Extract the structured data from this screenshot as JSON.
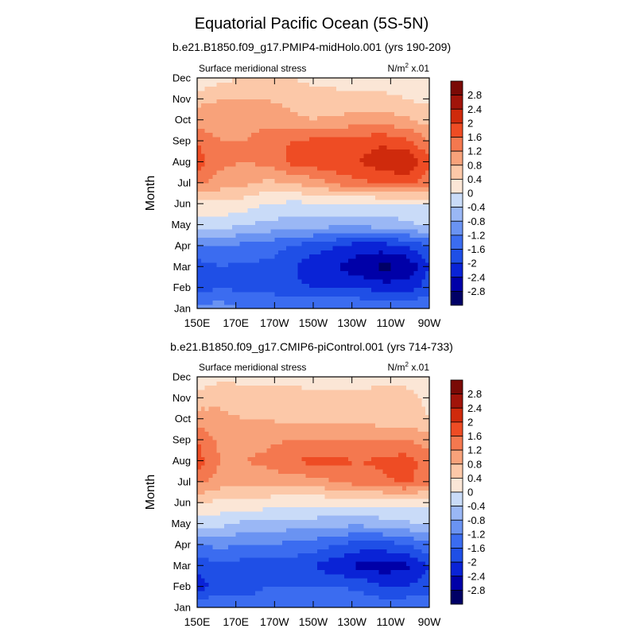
{
  "figure": {
    "title": "Equatorial Pacific Ocean (5S-5N)"
  },
  "chart_data": [
    {
      "type": "heatmap",
      "subtitle": "b.e21.B1850.f09_g17.PMIP4-midHolo.001 (yrs 190-209)",
      "left_label": "Surface meridional stress",
      "right_label_base": "N/m",
      "right_label_exp": "2",
      "right_label_scale": "x.01",
      "ylabel": "Month",
      "xlabel": "",
      "x_tick_labels": [
        "150E",
        "170E",
        "170W",
        "150W",
        "130W",
        "110W",
        "90W"
      ],
      "x_tick_values": [
        150,
        170,
        190,
        210,
        230,
        250,
        270
      ],
      "xlim": [
        150,
        270
      ],
      "y_tick_labels": [
        "Jan",
        "Feb",
        "Mar",
        "Apr",
        "May",
        "Jun",
        "Jul",
        "Aug",
        "Sep",
        "Oct",
        "Nov",
        "Dec"
      ],
      "ylim": [
        1,
        12
      ],
      "grid_lon": [
        150,
        162,
        174,
        186,
        198,
        210,
        222,
        234,
        246,
        258,
        270
      ],
      "values": [
        [
          -1.0,
          -1.0,
          -1.2,
          -1.2,
          -1.2,
          -1.2,
          -1.2,
          -1.2,
          -1.2,
          -1.2,
          -1.2
        ],
        [
          -1.8,
          -1.6,
          -1.7,
          -1.7,
          -1.9,
          -2.0,
          -2.0,
          -2.0,
          -2.2,
          -2.2,
          -1.8
        ],
        [
          -1.8,
          -1.6,
          -1.7,
          -1.7,
          -1.9,
          -2.3,
          -2.4,
          -2.7,
          -2.9,
          -2.8,
          -2.0
        ],
        [
          -1.2,
          -1.2,
          -1.3,
          -1.4,
          -1.6,
          -1.8,
          -2.0,
          -2.2,
          -2.2,
          -2.0,
          -1.6
        ],
        [
          -0.3,
          -0.2,
          -0.4,
          -0.5,
          -0.6,
          -0.6,
          -0.7,
          -0.7,
          -0.6,
          -0.5,
          -0.3
        ],
        [
          0.3,
          0.3,
          0.2,
          0.0,
          -0.1,
          -0.1,
          -0.1,
          -0.1,
          -0.1,
          -0.1,
          0.0
        ],
        [
          1.3,
          1.0,
          0.9,
          0.7,
          0.8,
          1.0,
          1.3,
          1.5,
          1.6,
          1.7,
          1.4
        ],
        [
          1.8,
          1.3,
          1.2,
          1.3,
          1.7,
          1.8,
          1.9,
          2.0,
          2.3,
          2.4,
          1.7
        ],
        [
          1.6,
          1.2,
          1.2,
          1.5,
          1.6,
          1.7,
          1.8,
          1.8,
          1.9,
          1.7,
          1.2
        ],
        [
          1.0,
          0.9,
          0.9,
          1.0,
          0.9,
          0.8,
          0.9,
          1.0,
          1.0,
          0.9,
          0.6
        ],
        [
          0.7,
          0.8,
          0.8,
          0.8,
          0.7,
          0.6,
          0.5,
          0.5,
          0.5,
          0.4,
          0.3
        ],
        [
          0.0,
          0.3,
          0.4,
          0.4,
          0.4,
          0.3,
          0.3,
          0.2,
          0.2,
          0.2,
          0.1
        ]
      ]
    },
    {
      "type": "heatmap",
      "subtitle": "b.e21.B1850.f09_g17.CMIP6-piControl.001 (yrs 714-733)",
      "left_label": "Surface meridional stress",
      "right_label_base": "N/m",
      "right_label_exp": "2",
      "right_label_scale": "x.01",
      "ylabel": "Month",
      "xlabel": "",
      "x_tick_labels": [
        "150E",
        "170E",
        "170W",
        "150W",
        "130W",
        "110W",
        "90W"
      ],
      "x_tick_values": [
        150,
        170,
        190,
        210,
        230,
        250,
        270
      ],
      "xlim": [
        150,
        270
      ],
      "y_tick_labels": [
        "Jan",
        "Feb",
        "Mar",
        "Apr",
        "May",
        "Jun",
        "Jul",
        "Aug",
        "Sep",
        "Oct",
        "Nov",
        "Dec"
      ],
      "ylim": [
        1,
        12
      ],
      "grid_lon": [
        150,
        162,
        174,
        186,
        198,
        210,
        222,
        234,
        246,
        258,
        270
      ],
      "values": [
        [
          -1.2,
          -1.2,
          -1.2,
          -1.2,
          -1.2,
          -1.2,
          -1.2,
          -1.2,
          -1.3,
          -1.2,
          -1.2
        ],
        [
          -2.2,
          -1.8,
          -1.9,
          -1.6,
          -1.6,
          -1.6,
          -1.6,
          -1.7,
          -2.0,
          -2.0,
          -1.8
        ],
        [
          -1.9,
          -1.7,
          -1.8,
          -1.8,
          -1.8,
          -2.0,
          -2.3,
          -2.5,
          -2.6,
          -2.5,
          -2.0
        ],
        [
          -1.2,
          -1.1,
          -1.2,
          -1.2,
          -1.3,
          -1.4,
          -1.6,
          -1.8,
          -1.8,
          -1.6,
          -1.3
        ],
        [
          -0.2,
          -0.3,
          -0.5,
          -0.5,
          -0.6,
          -0.6,
          -0.7,
          -0.7,
          -0.6,
          -0.5,
          -0.3
        ],
        [
          0.4,
          0.3,
          0.3,
          0.2,
          0.1,
          0.1,
          0.1,
          0.1,
          0.1,
          0.1,
          0.1
        ],
        [
          1.3,
          1.0,
          0.9,
          0.9,
          1.0,
          1.0,
          1.2,
          1.4,
          1.5,
          1.7,
          1.3
        ],
        [
          1.8,
          1.2,
          1.2,
          1.3,
          1.6,
          1.7,
          1.7,
          1.6,
          1.7,
          1.8,
          1.4
        ],
        [
          1.6,
          1.1,
          1.1,
          1.1,
          1.2,
          1.2,
          1.2,
          1.2,
          1.2,
          1.2,
          1.0
        ],
        [
          1.0,
          0.9,
          0.8,
          0.8,
          0.7,
          0.7,
          0.7,
          0.7,
          0.6,
          0.6,
          0.4
        ],
        [
          0.6,
          0.7,
          0.6,
          0.6,
          0.6,
          0.5,
          0.5,
          0.5,
          0.6,
          0.6,
          0.3
        ],
        [
          0.1,
          0.3,
          0.3,
          0.3,
          0.3,
          0.2,
          0.2,
          0.2,
          0.3,
          0.2,
          0.1
        ]
      ]
    }
  ],
  "colorbar": {
    "tick_labels": [
      "2.8",
      "2.4",
      "2",
      "1.6",
      "1.2",
      "0.8",
      "0.4",
      "0",
      "-0.4",
      "-0.8",
      "-1.2",
      "-1.6",
      "-2",
      "-2.4",
      "-2.8"
    ],
    "levels": [
      -2.8,
      -2.4,
      -2.0,
      -1.6,
      -1.2,
      -0.8,
      -0.4,
      0.0,
      0.4,
      0.8,
      1.2,
      1.6,
      2.0,
      2.4,
      2.8
    ],
    "colors": [
      "#000066",
      "#0000a8",
      "#0a23d6",
      "#1f4fe6",
      "#3b6cf0",
      "#6a93f2",
      "#9ab7f5",
      "#c9dbf8",
      "#fbe6d6",
      "#fcc8a8",
      "#f8a27a",
      "#f4784f",
      "#ee4c24",
      "#cf2a0c",
      "#a1140a",
      "#7a0a06"
    ]
  }
}
